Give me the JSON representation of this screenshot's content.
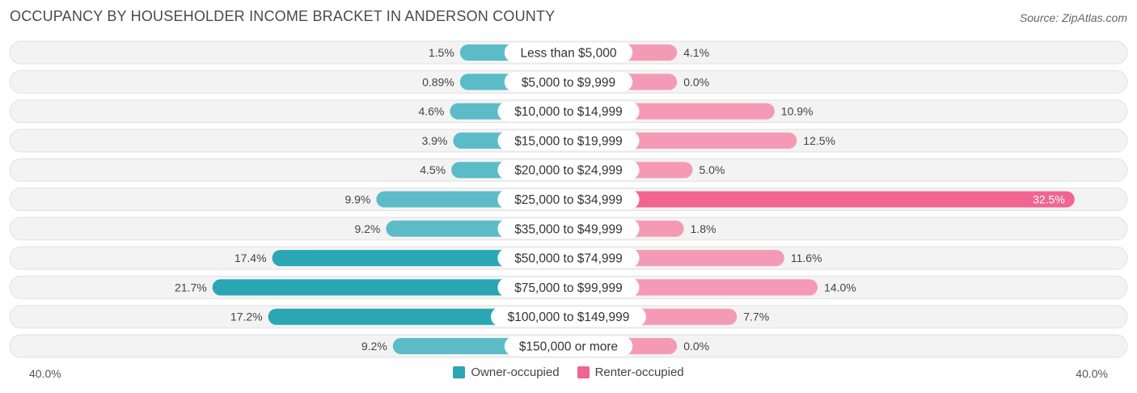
{
  "title": "OCCUPANCY BY HOUSEHOLDER INCOME BRACKET IN ANDERSON COUNTY",
  "source": "Source: ZipAtlas.com",
  "colors": {
    "owner": "#5bbcc8",
    "owner_strong": "#2aa6b4",
    "renter": "#f59ab6",
    "renter_strong": "#f06591",
    "track": "#efefef"
  },
  "chart_data": {
    "type": "bar",
    "orientation": "diverging-horizontal",
    "axis_min_label": "40.0%",
    "axis_max_label": "40.0%",
    "max_value": 40.0,
    "categories": [
      "Less than $5,000",
      "$5,000 to $9,999",
      "$10,000 to $14,999",
      "$15,000 to $19,999",
      "$20,000 to $24,999",
      "$25,000 to $34,999",
      "$35,000 to $49,999",
      "$50,000 to $74,999",
      "$75,000 to $99,999",
      "$100,000 to $149,999",
      "$150,000 or more"
    ],
    "series": [
      {
        "name": "Owner-occupied",
        "values": [
          1.5,
          0.89,
          4.6,
          3.9,
          4.5,
          9.9,
          9.2,
          17.4,
          21.7,
          17.2,
          9.2
        ],
        "labels": [
          "1.5%",
          "0.89%",
          "4.6%",
          "3.9%",
          "4.5%",
          "9.9%",
          "9.2%",
          "17.4%",
          "21.7%",
          "17.2%",
          "9.2%"
        ]
      },
      {
        "name": "Renter-occupied",
        "values": [
          4.1,
          0.0,
          10.9,
          12.5,
          5.0,
          32.5,
          1.8,
          11.6,
          14.0,
          7.7,
          0.0
        ],
        "labels": [
          "4.1%",
          "0.0%",
          "10.9%",
          "12.5%",
          "5.0%",
          "32.5%",
          "1.8%",
          "11.6%",
          "14.0%",
          "7.7%",
          "0.0%"
        ]
      }
    ],
    "legend": [
      "Owner-occupied",
      "Renter-occupied"
    ]
  }
}
